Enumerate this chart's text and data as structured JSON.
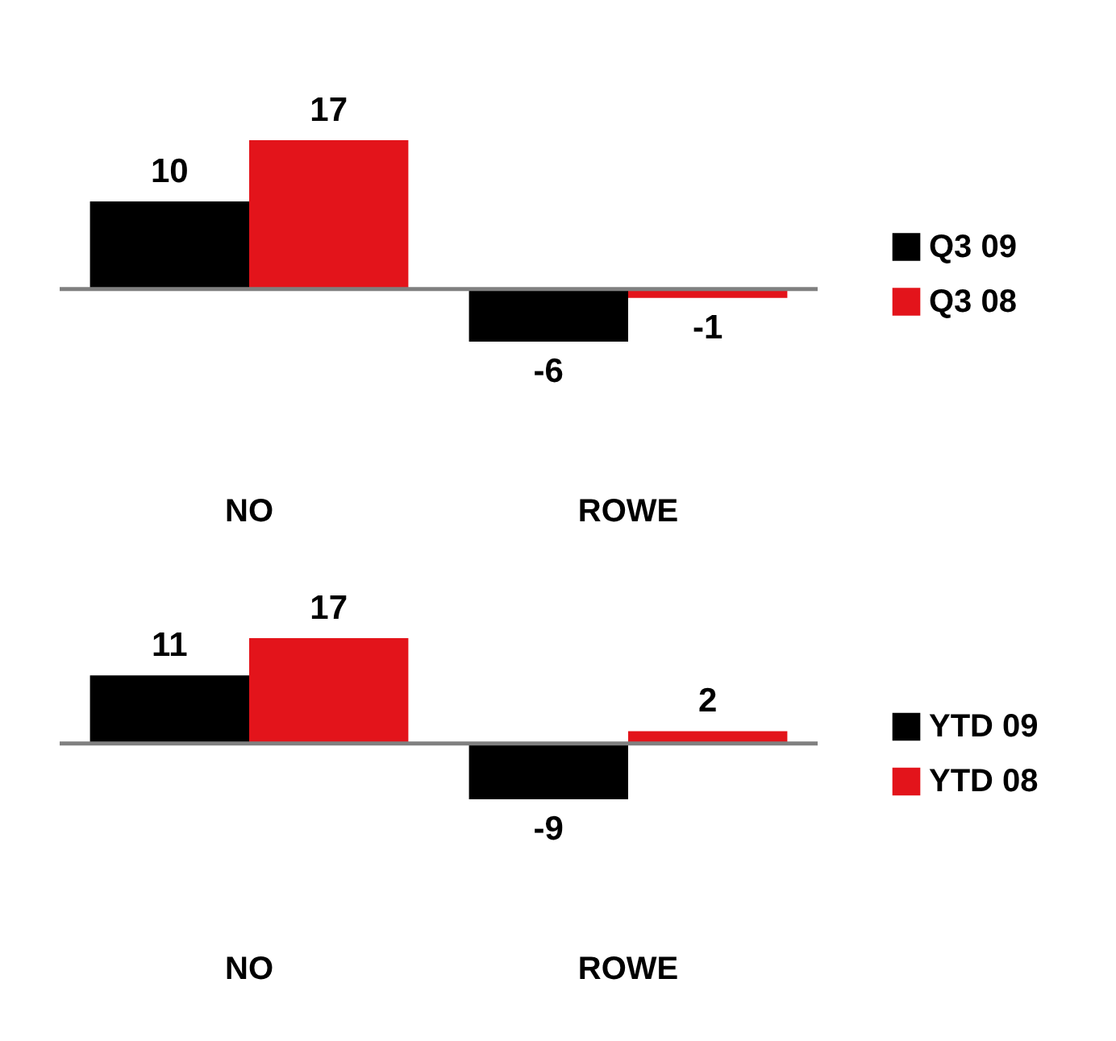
{
  "chart_data": [
    {
      "type": "bar",
      "categories": [
        "NO",
        "ROWE"
      ],
      "series": [
        {
          "name": "Q3 09",
          "color": "#000000",
          "values": [
            10,
            -6
          ]
        },
        {
          "name": "Q3 08",
          "color": "#e3141b",
          "values": [
            17,
            -1
          ]
        }
      ],
      "data_labels": true,
      "legend": "right",
      "ref_lines": [
        {
          "axis": "y",
          "value": 0,
          "color": "#808080"
        }
      ]
    },
    {
      "type": "bar",
      "categories": [
        "NO",
        "ROWE"
      ],
      "series": [
        {
          "name": "YTD 09",
          "color": "#000000",
          "values": [
            11,
            -9
          ]
        },
        {
          "name": "YTD 08",
          "color": "#e3141b",
          "values": [
            17,
            2
          ]
        }
      ],
      "data_labels": true,
      "legend": "right",
      "ref_lines": [
        {
          "axis": "y",
          "value": 0,
          "color": "#808080"
        }
      ]
    }
  ]
}
